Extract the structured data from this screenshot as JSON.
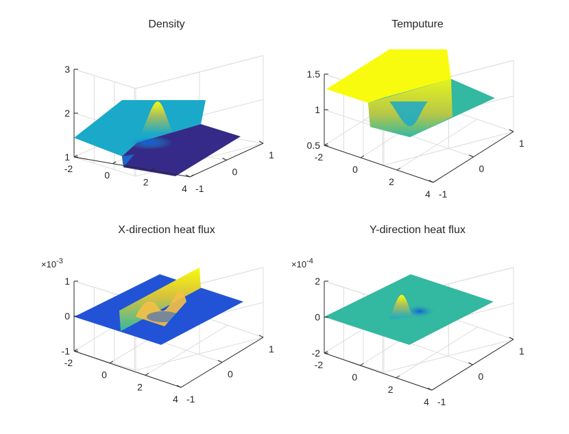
{
  "chart_data": [
    {
      "type": "surface",
      "title": "Density",
      "exponent_label": "",
      "x_ticks": [
        "-2",
        "0",
        "2",
        "4"
      ],
      "y_ticks": [
        "-1",
        "0",
        "1"
      ],
      "z_ticks": [
        "1",
        "2",
        "3"
      ],
      "xlim": [
        -2,
        4
      ],
      "ylim": [
        -1,
        1
      ],
      "zlim": [
        1,
        3
      ],
      "grid": true,
      "colormap": "parula",
      "shape": "step-with-peak",
      "levels": {
        "left_plateau": 1.4,
        "right_plateau": 1.0,
        "peak": 2.25
      }
    },
    {
      "type": "surface",
      "title": "Temputure",
      "exponent_label": "",
      "x_ticks": [
        "-2",
        "0",
        "2",
        "4"
      ],
      "y_ticks": [
        "-1",
        "0",
        "1"
      ],
      "z_ticks": [
        "0.5",
        "1",
        "1.5"
      ],
      "xlim": [
        -2,
        4
      ],
      "ylim": [
        -1,
        1
      ],
      "zlim": [
        0.5,
        1.5
      ],
      "grid": true,
      "colormap": "parula",
      "shape": "step-with-dip",
      "levels": {
        "left_plateau": 1.28,
        "right_plateau": 1.0,
        "dip": 0.8
      }
    },
    {
      "type": "surface",
      "title": "X-direction heat flux",
      "exponent_label": "×10-3",
      "x_ticks": [
        "-2",
        "0",
        "2",
        "4"
      ],
      "y_ticks": [
        "-1",
        "0",
        "1"
      ],
      "z_ticks": [
        "-1",
        "0",
        "1"
      ],
      "xlim": [
        -2,
        4
      ],
      "ylim": [
        -1,
        1
      ],
      "zlim": [
        -1,
        1
      ],
      "grid": true,
      "colormap": "parula",
      "shape": "raised-strip-with-wave",
      "levels": {
        "base": 0.0,
        "strip": 0.4,
        "peak": 0.75
      }
    },
    {
      "type": "surface",
      "title": "Y-direction heat flux",
      "exponent_label": "×10-4",
      "x_ticks": [
        "-2",
        "0",
        "2",
        "4"
      ],
      "y_ticks": [
        "-1",
        "0",
        "1"
      ],
      "z_ticks": [
        "-2",
        "0",
        "2"
      ],
      "xlim": [
        -2,
        4
      ],
      "ylim": [
        -1,
        1
      ],
      "zlim": [
        -2,
        2
      ],
      "grid": true,
      "colormap": "parula",
      "shape": "dipole",
      "levels": {
        "base": 0.0,
        "peak": 1.4,
        "trough": -0.8
      }
    }
  ],
  "colors": {
    "deep_blue": "#352a87",
    "blue": "#0f5cdd",
    "cyan": "#1aa9c9",
    "teal": "#33b8a1",
    "yellow_green": "#a5be5f",
    "orange": "#f4c046",
    "yellow": "#f9fb0e",
    "grid": "#dcdcdc",
    "axis": "#262626"
  }
}
